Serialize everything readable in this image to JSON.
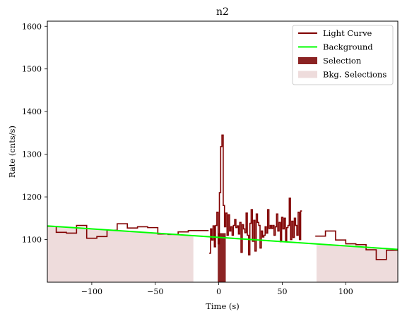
{
  "chart_data": {
    "type": "line",
    "title": "n2",
    "xlabel": "Time (s)",
    "ylabel": "Rate (cnts/s)",
    "xlim": [
      -135,
      141
    ],
    "ylim": [
      1000,
      1612
    ],
    "xticks": [
      -100,
      -50,
      0,
      50,
      100
    ],
    "xtick_labels": [
      "−100",
      "−50",
      "0",
      "50",
      "100"
    ],
    "yticks": [
      1100,
      1200,
      1300,
      1400,
      1500,
      1600
    ],
    "ytick_labels": [
      "1100",
      "1200",
      "1300",
      "1400",
      "1500",
      "1600"
    ],
    "grid": false,
    "legend_position": "top-right",
    "legend": [
      {
        "label": "Light Curve",
        "kind": "line",
        "color": "#800000"
      },
      {
        "label": "Background",
        "kind": "line",
        "color": "#00ff00"
      },
      {
        "label": "Selection",
        "kind": "patch",
        "color": "#8b2323"
      },
      {
        "label": "Bkg. Selections",
        "kind": "patch",
        "color": "#eedcdc"
      }
    ],
    "light_curve": {
      "name": "Light Curve",
      "color": "#800000",
      "segments": [
        [
          [
            -135,
            1131
          ],
          [
            -128,
            1117
          ],
          [
            -120,
            1115
          ],
          [
            -112,
            1133
          ],
          [
            -104,
            1103
          ],
          [
            -96,
            1107
          ],
          [
            -88,
            1122
          ],
          [
            -80,
            1137
          ],
          [
            -72,
            1127
          ],
          [
            -64,
            1130
          ],
          [
            -56,
            1128
          ],
          [
            -48,
            1113
          ],
          [
            -40,
            1112
          ],
          [
            -32,
            1118
          ],
          [
            -24,
            1121
          ],
          [
            -16,
            1121
          ]
        ],
        [
          [
            -7.5,
            1068
          ],
          [
            -6.5,
            1125
          ],
          [
            -5.5,
            1099
          ],
          [
            -4.5,
            1132
          ],
          [
            -3.5,
            1083
          ],
          [
            -2.5,
            1133
          ],
          [
            -1.5,
            1164
          ],
          [
            -0.5,
            1090
          ],
          [
            0.5,
            1210
          ],
          [
            1.5,
            1318
          ],
          [
            2.5,
            1345
          ],
          [
            3.5,
            1180
          ],
          [
            4.5,
            1130
          ],
          [
            5.5,
            1162
          ],
          [
            6.5,
            1110
          ],
          [
            7.5,
            1158
          ],
          [
            8.5,
            1120
          ],
          [
            9.5,
            1130
          ],
          [
            10.5,
            1110
          ],
          [
            11.5,
            1133
          ],
          [
            12.5,
            1147
          ],
          [
            13.5,
            1128
          ],
          [
            14.5,
            1132
          ],
          [
            15.5,
            1113
          ],
          [
            16.5,
            1140
          ],
          [
            17.5,
            1070
          ],
          [
            18.5,
            1135
          ],
          [
            19.5,
            1125
          ],
          [
            20.5,
            1116
          ],
          [
            21.5,
            1162
          ],
          [
            22.5,
            1110
          ],
          [
            23.5,
            1064
          ],
          [
            24.5,
            1138
          ],
          [
            25.5,
            1170
          ],
          [
            26.5,
            1096
          ],
          [
            27.5,
            1145
          ],
          [
            28.5,
            1073
          ],
          [
            29.5,
            1160
          ],
          [
            30.5,
            1140
          ],
          [
            31.5,
            1133
          ],
          [
            32.5,
            1080
          ],
          [
            33.5,
            1120
          ],
          [
            34.5,
            1106
          ],
          [
            35.5,
            1110
          ],
          [
            36.5,
            1130
          ],
          [
            37.5,
            1115
          ],
          [
            38.5,
            1170
          ],
          [
            39.5,
            1126
          ],
          [
            40.5,
            1133
          ],
          [
            41.5,
            1126
          ],
          [
            42.5,
            1133
          ],
          [
            43.5,
            1110
          ],
          [
            44.5,
            1130
          ],
          [
            45.5,
            1160
          ],
          [
            46.5,
            1120
          ],
          [
            47.5,
            1140
          ],
          [
            48.5,
            1095
          ],
          [
            49.5,
            1152
          ],
          [
            50.5,
            1125
          ],
          [
            51.5,
            1150
          ],
          [
            52.5,
            1095
          ],
          [
            53.5,
            1128
          ],
          [
            54.5,
            1133
          ],
          [
            55.5,
            1197
          ],
          [
            56.5,
            1100
          ],
          [
            57.5,
            1143
          ],
          [
            58.5,
            1105
          ],
          [
            59.5,
            1150
          ],
          [
            60.5,
            1133
          ],
          [
            61.5,
            1110
          ],
          [
            62.5,
            1164
          ],
          [
            63.5,
            1100
          ],
          [
            64.5,
            1167
          ]
        ],
        [
          [
            76,
            1108
          ],
          [
            84,
            1120
          ],
          [
            92,
            1099
          ],
          [
            100,
            1090
          ],
          [
            108,
            1088
          ],
          [
            116,
            1076
          ],
          [
            124,
            1053
          ],
          [
            132,
            1075
          ],
          [
            141,
            1076
          ]
        ]
      ]
    },
    "background": {
      "name": "Background",
      "color": "#00ff00",
      "x": [
        -135,
        141
      ],
      "y": [
        1132,
        1077
      ]
    },
    "selection": {
      "name": "Selection",
      "color": "#8b2323",
      "x_range": [
        -0.8,
        5.5
      ],
      "y_range": [
        1000,
        1115
      ]
    },
    "bkg_selections": {
      "name": "Bkg. Selections",
      "color": "#eedcdc",
      "ranges": [
        [
          -135,
          -20
        ],
        [
          77,
          141
        ]
      ]
    }
  }
}
